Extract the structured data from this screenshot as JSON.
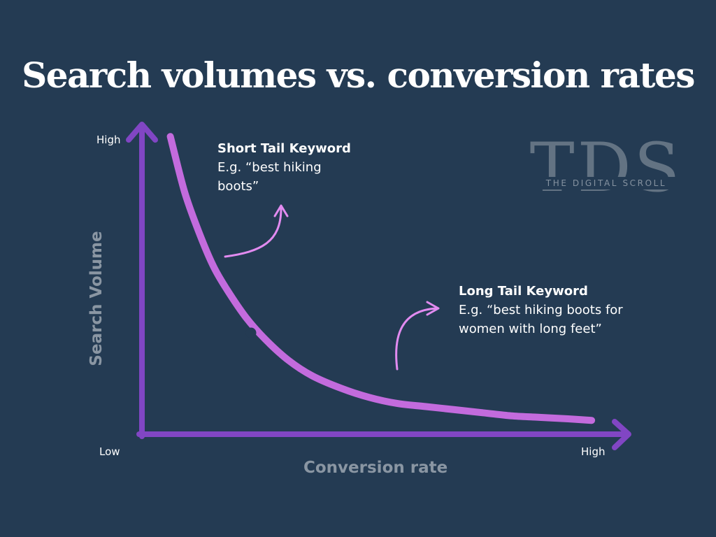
{
  "colors": {
    "background": "#243b53",
    "axis": "#8146c4",
    "curve": "#c36bdd",
    "annotation_arrow": "#e28bf0",
    "title_text": "#ffffff",
    "axis_label_text": "#8a96a3"
  },
  "watermark": {
    "letters": "TDS",
    "subtitle": "THE DIGITAL SCROLL"
  },
  "chart_data": {
    "type": "line",
    "title": "Search volumes vs. conversion rates",
    "xlabel": "Conversion rate",
    "ylabel": "Search Volume",
    "x_ticks": [
      "Low",
      "High"
    ],
    "y_ticks": [
      "High"
    ],
    "xlim": [
      0,
      100
    ],
    "ylim": [
      0,
      100
    ],
    "grid": false,
    "legend": "none",
    "series": [
      {
        "x": [
          6,
          9,
          12,
          15,
          18,
          22,
          26,
          31,
          36,
          42,
          48,
          54,
          60,
          66,
          72,
          78,
          84,
          90,
          95
        ],
        "y": [
          97,
          79,
          66,
          55,
          47,
          38,
          31,
          24,
          19,
          15,
          12,
          10,
          9,
          8,
          7,
          6,
          5.5,
          5,
          4.5
        ]
      }
    ],
    "annotations": [
      {
        "title": "Short Tail Keyword",
        "text": "E.g. “best hiking boots”"
      },
      {
        "title": "Long Tail Keyword",
        "text": "E.g. “best hiking boots for women with long feet”"
      }
    ]
  }
}
